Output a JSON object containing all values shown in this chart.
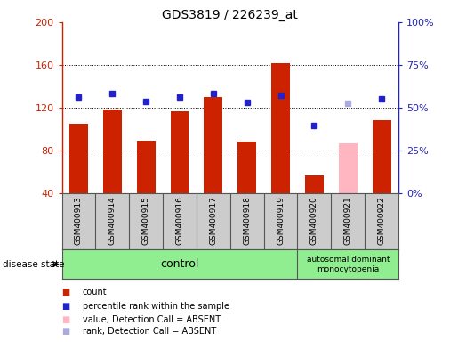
{
  "title": "GDS3819 / 226239_at",
  "samples": [
    "GSM400913",
    "GSM400914",
    "GSM400915",
    "GSM400916",
    "GSM400917",
    "GSM400918",
    "GSM400919",
    "GSM400920",
    "GSM400921",
    "GSM400922"
  ],
  "bar_values": [
    105,
    118,
    89,
    117,
    130,
    88,
    162,
    57,
    87,
    108
  ],
  "bar_colors": [
    "#cc2200",
    "#cc2200",
    "#cc2200",
    "#cc2200",
    "#cc2200",
    "#cc2200",
    "#cc2200",
    "#cc2200",
    "#ffb6c1",
    "#cc2200"
  ],
  "rank_values": [
    130,
    133,
    126,
    130,
    133,
    125,
    132,
    103,
    124,
    128
  ],
  "rank_colors": [
    "#2222cc",
    "#2222cc",
    "#2222cc",
    "#2222cc",
    "#2222cc",
    "#2222cc",
    "#2222cc",
    "#2222cc",
    "#aaaadd",
    "#2222cc"
  ],
  "ylim_left": [
    40,
    200
  ],
  "ylim_right": [
    0,
    100
  ],
  "yticks_left": [
    40,
    80,
    120,
    160,
    200
  ],
  "yticks_right": [
    0,
    25,
    50,
    75,
    100
  ],
  "yticklabels_right": [
    "0%",
    "25%",
    "50%",
    "75%",
    "100%"
  ],
  "control_samples": 7,
  "disease_label": "autosomal dominant\nmonocytopenia",
  "control_label": "control",
  "disease_state_label": "disease state",
  "legend_items": [
    {
      "label": "count",
      "color": "#cc2200"
    },
    {
      "label": "percentile rank within the sample",
      "color": "#2222cc"
    },
    {
      "label": "value, Detection Call = ABSENT",
      "color": "#ffb6c1"
    },
    {
      "label": "rank, Detection Call = ABSENT",
      "color": "#aaaadd"
    }
  ],
  "bg_color": "#ffffff",
  "left_axis_color": "#cc2200",
  "right_axis_color": "#2222bb",
  "label_bg_color": "#cccccc",
  "disease_bg_color": "#90ee90",
  "grid_dotted_values": [
    80,
    120,
    160
  ]
}
